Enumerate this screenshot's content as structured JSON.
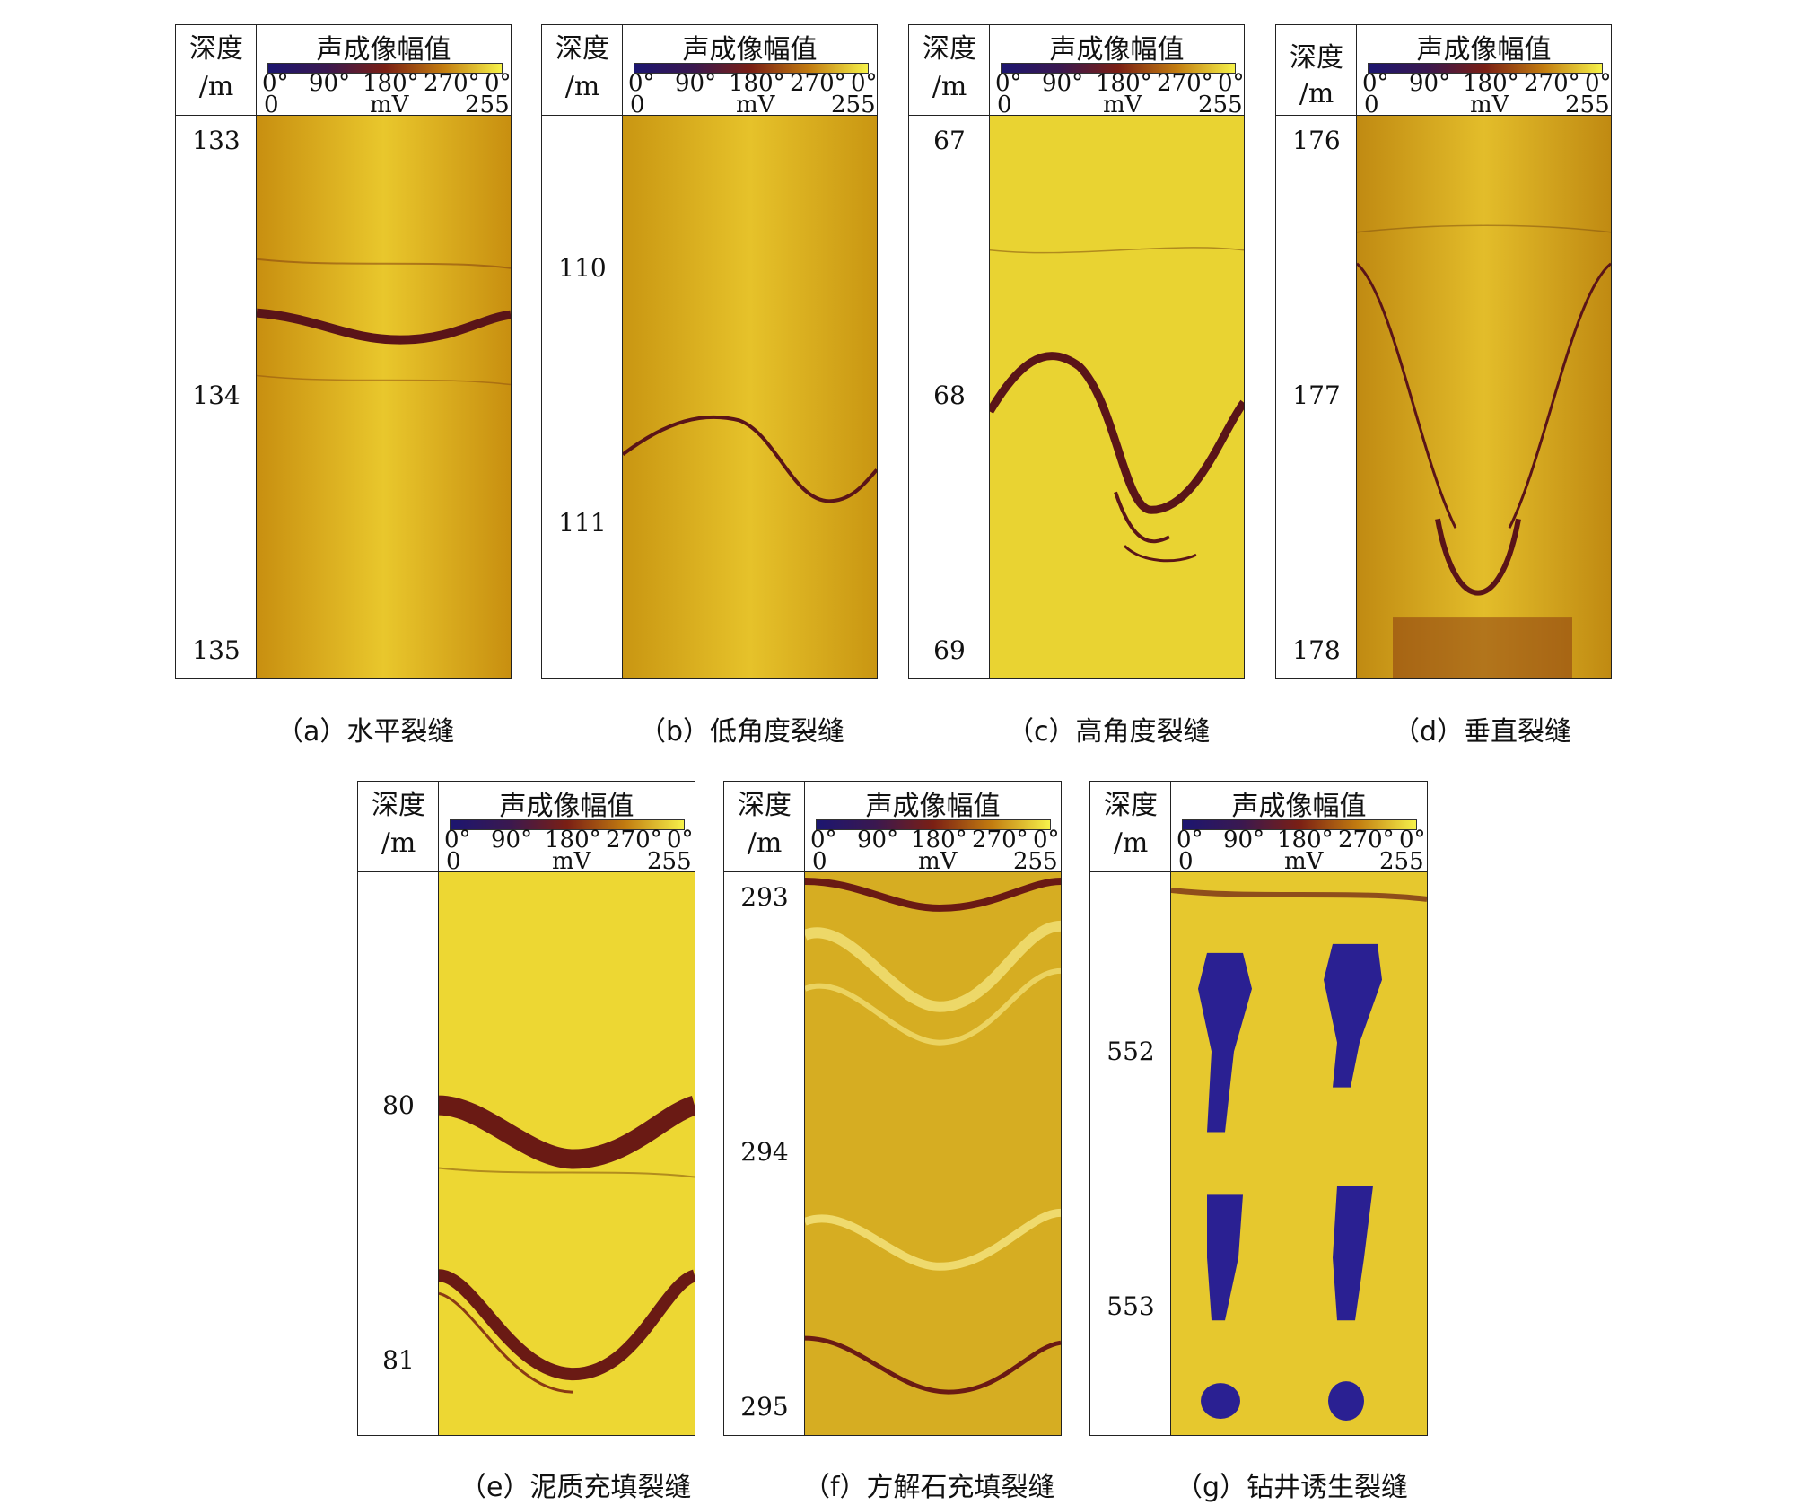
{
  "header": {
    "depth_label_line1": "深度",
    "depth_label_line2": "/m",
    "track_title": "声成像幅值",
    "angle_ticks": [
      "0°",
      "90°",
      "180°",
      "270°",
      "0°"
    ],
    "mv_left": "0",
    "mv_unit": "mV",
    "mv_right": "255"
  },
  "colormap": [
    "#1c1670",
    "#7a1f14",
    "#c27c10",
    "#f6f24a"
  ],
  "panels": [
    {
      "id": "a",
      "caption": "（a）水平裂缝",
      "depth_ticks": [
        "133",
        "134",
        "135"
      ]
    },
    {
      "id": "b",
      "caption": "（b）低角度裂缝",
      "depth_ticks": [
        "110",
        "111"
      ]
    },
    {
      "id": "c",
      "caption": "（c）高角度裂缝",
      "depth_ticks": [
        "67",
        "68",
        "69"
      ]
    },
    {
      "id": "d",
      "caption": "（d）垂直裂缝",
      "depth_ticks": [
        "176",
        "177",
        "178"
      ]
    },
    {
      "id": "e",
      "caption": "（e）泥质充填裂缝",
      "depth_ticks": [
        "80",
        "81"
      ]
    },
    {
      "id": "f",
      "caption": "（f）方解石充填裂缝",
      "depth_ticks": [
        "293",
        "294",
        "295"
      ]
    },
    {
      "id": "g",
      "caption": "（g）钻井诱生裂缝",
      "depth_ticks": [
        "552",
        "553"
      ]
    }
  ]
}
